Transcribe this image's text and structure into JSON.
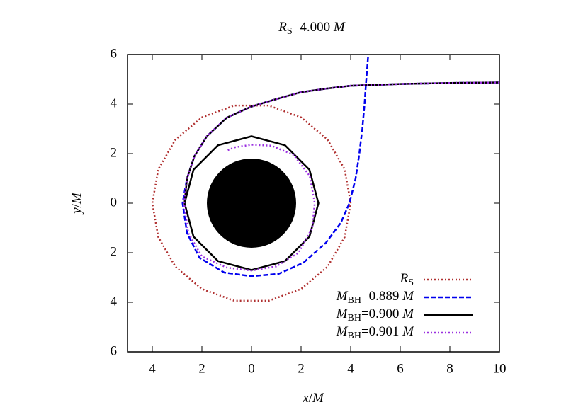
{
  "chart_data": {
    "type": "line",
    "title": [
      "R",
      "S",
      "=4.000 ",
      "M"
    ],
    "xlabel": [
      "x",
      "/",
      "M"
    ],
    "ylabel": [
      "y",
      "/",
      "M"
    ],
    "xlim": [
      -5,
      10
    ],
    "ylim": [
      -6,
      6
    ],
    "xticks": [
      {
        "value": -4,
        "label": "4"
      },
      {
        "value": -2,
        "label": "2"
      },
      0,
      2,
      4,
      6,
      8,
      10
    ],
    "yticks": [
      {
        "value": -6,
        "label": "6"
      },
      {
        "value": -4,
        "label": "4"
      },
      {
        "value": -2,
        "label": "2"
      },
      0,
      2,
      4,
      6
    ],
    "horizon_radius": 1.8,
    "horizon_color": "#000000",
    "legend": "lower right",
    "series": [
      {
        "name": [
          "R",
          "S",
          "",
          ""
        ],
        "color": "#b03030",
        "style": "dotted",
        "x": [
          4,
          3.759,
          3.064,
          2,
          0.695,
          -0.695,
          -2,
          -3.064,
          -3.759,
          -4,
          -3.759,
          -3.064,
          -2,
          -0.695,
          0.695,
          2,
          3.064,
          3.759,
          4
        ],
        "y": [
          0,
          1.368,
          2.571,
          3.464,
          3.939,
          3.939,
          3.464,
          2.571,
          1.368,
          0,
          -1.368,
          -2.571,
          -3.464,
          -3.939,
          -3.939,
          -3.464,
          -2.571,
          -1.368,
          0
        ]
      },
      {
        "name": [
          "M",
          "BH",
          "=0.889 ",
          "M"
        ],
        "color": "#0000ee",
        "style": "dashed",
        "x": [
          10,
          8,
          6,
          4,
          3,
          2,
          1,
          0,
          -1,
          -1.8,
          -2.3,
          -2.6,
          -2.78,
          -2.6,
          -2.1,
          -1.1,
          0,
          1.1,
          2.1,
          3.0,
          3.6,
          3.95,
          4.2,
          4.35,
          4.47,
          4.56,
          4.63,
          4.71
        ],
        "y": [
          4.87,
          4.85,
          4.81,
          4.74,
          4.62,
          4.48,
          4.2,
          3.9,
          3.45,
          2.7,
          1.9,
          1.0,
          0,
          -1.2,
          -2.2,
          -2.8,
          -2.95,
          -2.85,
          -2.4,
          -1.6,
          -0.8,
          0,
          1,
          2,
          3,
          4,
          5,
          6
        ]
      },
      {
        "name": [
          "M",
          "BH",
          "=0.900 ",
          "M"
        ],
        "color": "#000000",
        "style": "solid",
        "x": [
          10,
          8,
          6,
          4,
          3,
          2,
          1,
          0,
          -1,
          -1.8,
          -2.3,
          -2.6,
          -2.7,
          -2.338,
          -1.35,
          0,
          1.35,
          2.338,
          2.7,
          2.338,
          1.35,
          0,
          -1.35,
          -2.338,
          -2.7
        ],
        "y": [
          4.87,
          4.85,
          4.81,
          4.74,
          4.62,
          4.48,
          4.2,
          3.9,
          3.45,
          2.7,
          1.9,
          1.0,
          0,
          -1.35,
          -2.338,
          -2.7,
          -2.338,
          -1.35,
          0,
          1.35,
          2.338,
          2.7,
          2.338,
          1.35,
          0
        ]
      },
      {
        "name": [
          "M",
          "BH",
          "=0.901 ",
          "M"
        ],
        "color": "#9a30e0",
        "style": "dotted",
        "x": [
          10,
          8,
          6,
          4,
          3,
          2,
          1,
          0,
          -1,
          -1.8,
          -2.3,
          -2.6,
          -2.72,
          -2.55,
          -2.0,
          -1.0,
          0,
          1.0,
          1.9,
          2.45,
          2.55,
          2.35,
          1.7,
          0.8,
          0,
          -0.7,
          -1.0
        ],
        "y": [
          4.87,
          4.85,
          4.81,
          4.74,
          4.62,
          4.48,
          4.2,
          3.9,
          3.45,
          2.7,
          1.9,
          1.0,
          0,
          -1.2,
          -2.15,
          -2.6,
          -2.72,
          -2.55,
          -2.0,
          -1.0,
          0,
          1.1,
          1.95,
          2.32,
          2.36,
          2.25,
          2.12
        ]
      }
    ]
  }
}
